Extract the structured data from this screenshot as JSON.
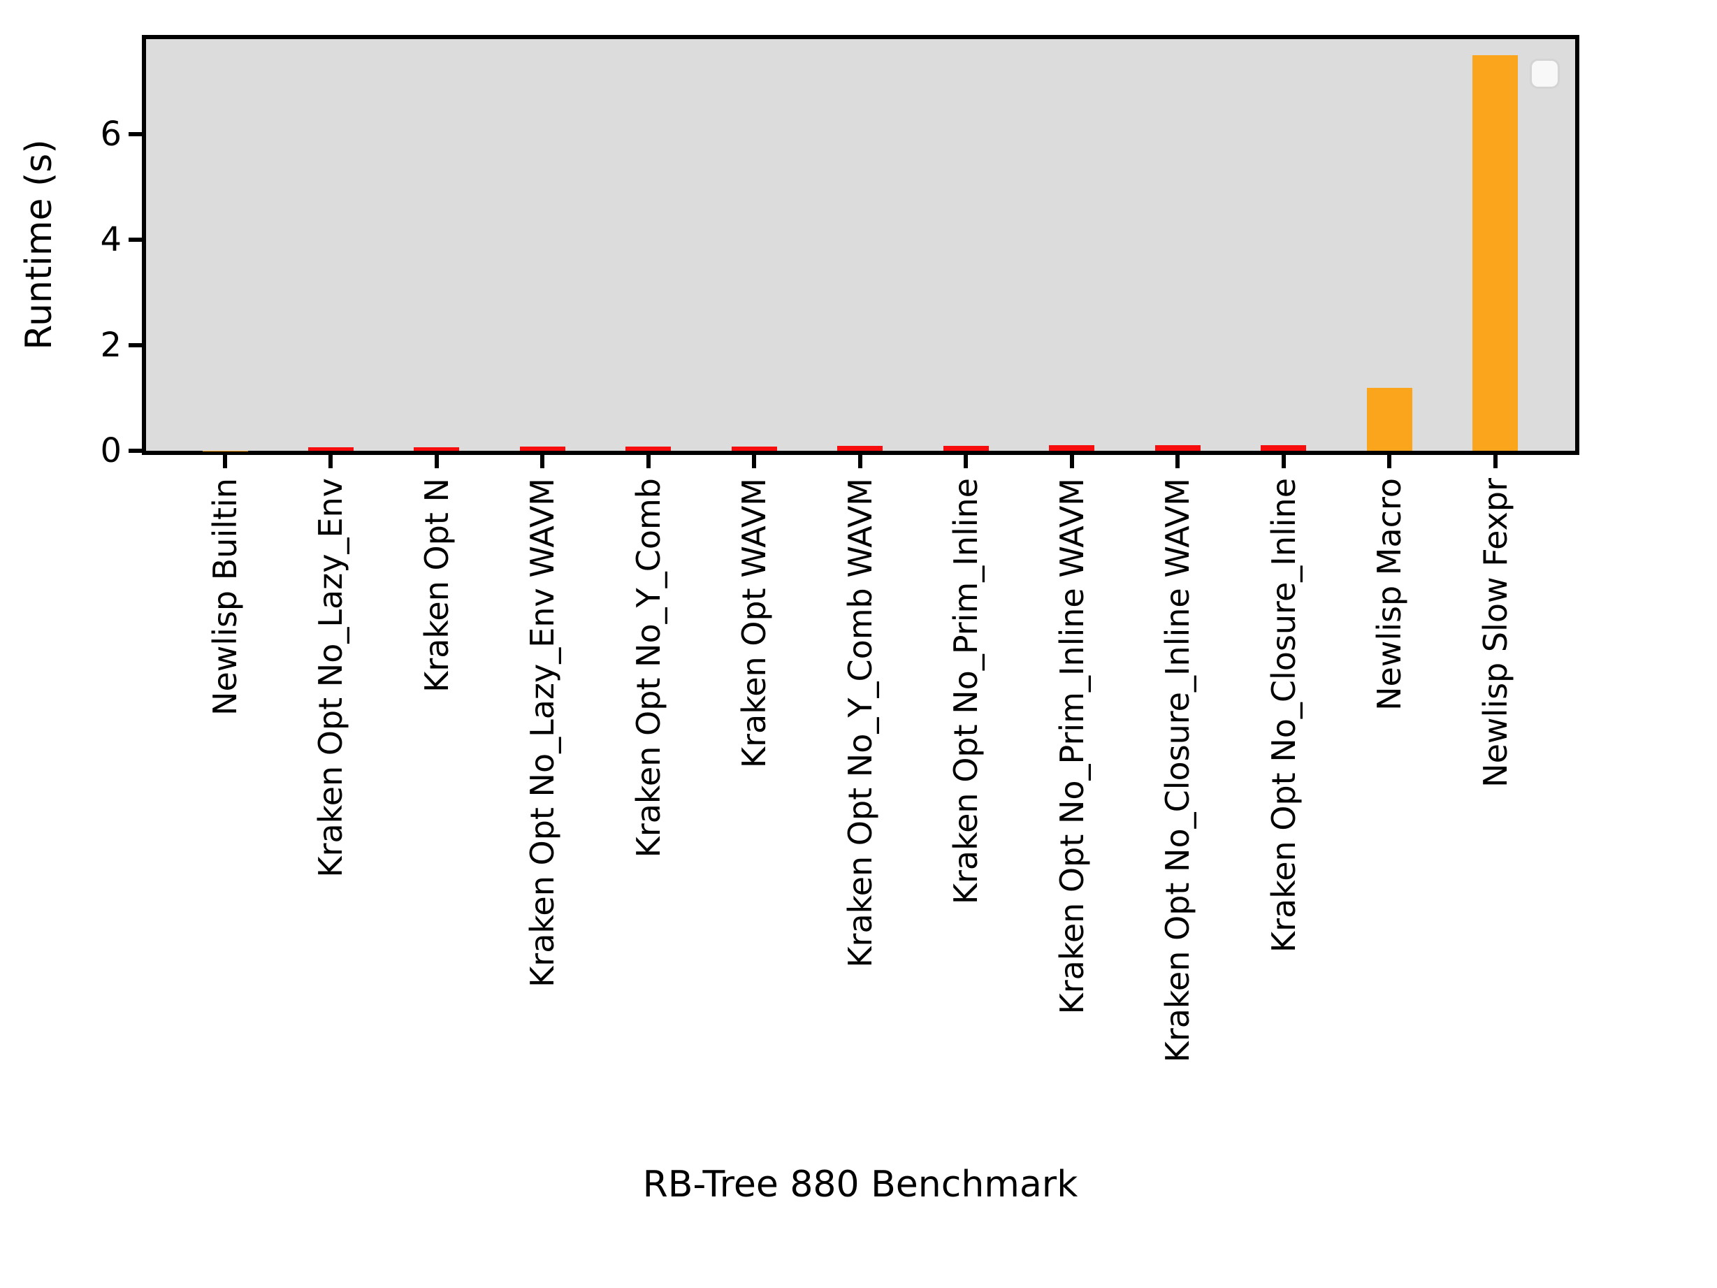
{
  "chart_data": {
    "type": "bar",
    "title": "",
    "xlabel": "RB-Tree 880 Benchmark",
    "ylabel": "Runtime (s)",
    "categories": [
      "Newlisp Builtin",
      "Kraken Opt No_Lazy_Env",
      "Kraken Opt N",
      "Kraken Opt No_Lazy_Env WAVM",
      "Kraken Opt No_Y_Comb",
      "Kraken Opt WAVM",
      "Kraken Opt No_Y_Comb WAVM",
      "Kraken Opt No_Prim_Inline",
      "Kraken Opt No_Prim_Inline WAVM",
      "Kraken Opt No_Closure_Inline WAVM",
      "Kraken Opt No_Closure_Inline",
      "Newlisp Macro",
      "Newlisp Slow Fexpr"
    ],
    "values": [
      0.005,
      0.07,
      0.07,
      0.08,
      0.08,
      0.08,
      0.09,
      0.09,
      0.1,
      0.1,
      0.1,
      1.19,
      7.5
    ],
    "bar_colors": [
      "#faa51b",
      "#f70d0d",
      "#f70d0d",
      "#f70d0d",
      "#f70d0d",
      "#f70d0d",
      "#f70d0d",
      "#f70d0d",
      "#f70d0d",
      "#f70d0d",
      "#f70d0d",
      "#faa51b",
      "#faa51b"
    ],
    "ytick_labels": [
      "0",
      "2",
      "4",
      "6"
    ],
    "ytick_values": [
      0,
      2,
      4,
      6
    ],
    "ylim": [
      0,
      7.84
    ],
    "grid": false,
    "legend": {
      "visible": true,
      "entries": [],
      "position": "upper right"
    }
  },
  "colors": {
    "plot_background": "#dcdcdc",
    "spine": "#000000",
    "kraken_bar": "#f70d0d",
    "newlisp_bar": "#faa51b",
    "legend_background": "#f8f8f8",
    "legend_border": "#d4d4d4"
  }
}
